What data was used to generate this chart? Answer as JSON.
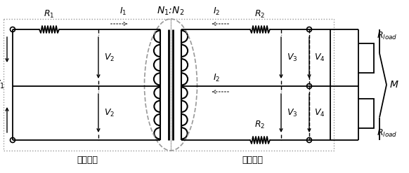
{
  "fig_width": 5.82,
  "fig_height": 2.47,
  "dpi": 100,
  "bg_color": "#ffffff",
  "line_color": "#000000",
  "dotted_color": "#999999",
  "title_primary": "初级线圈",
  "title_secondary": "次级线圈"
}
